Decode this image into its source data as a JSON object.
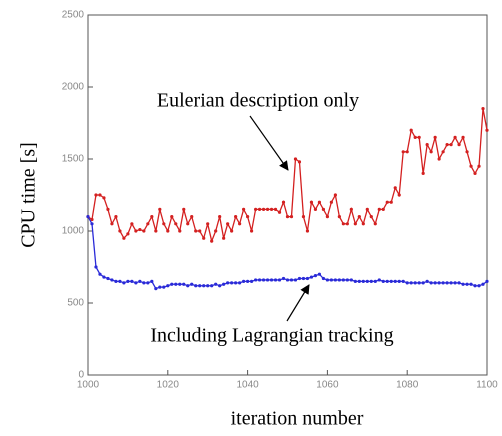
{
  "chart_data": {
    "type": "line",
    "xlabel": "iteration number",
    "ylabel": "CPU time   [s]",
    "annotations": [
      "Eulerian description only",
      "Including Lagrangian tracking"
    ],
    "xlim": [
      1000,
      1100
    ],
    "xticks": [
      1000,
      1020,
      1040,
      1060,
      1080,
      1100
    ],
    "ylim": [
      0,
      2500
    ],
    "yticks": [
      0,
      500,
      1000,
      1500,
      2000,
      2500
    ],
    "x": [
      1000,
      1001,
      1002,
      1003,
      1004,
      1005,
      1006,
      1007,
      1008,
      1009,
      1010,
      1011,
      1012,
      1013,
      1014,
      1015,
      1016,
      1017,
      1018,
      1019,
      1020,
      1021,
      1022,
      1023,
      1024,
      1025,
      1026,
      1027,
      1028,
      1029,
      1030,
      1031,
      1032,
      1033,
      1034,
      1035,
      1036,
      1037,
      1038,
      1039,
      1040,
      1041,
      1042,
      1043,
      1044,
      1045,
      1046,
      1047,
      1048,
      1049,
      1050,
      1051,
      1052,
      1053,
      1054,
      1055,
      1056,
      1057,
      1058,
      1059,
      1060,
      1061,
      1062,
      1063,
      1064,
      1065,
      1066,
      1067,
      1068,
      1069,
      1070,
      1071,
      1072,
      1073,
      1074,
      1075,
      1076,
      1077,
      1078,
      1079,
      1080,
      1081,
      1082,
      1083,
      1084,
      1085,
      1086,
      1087,
      1088,
      1089,
      1090,
      1091,
      1092,
      1093,
      1094,
      1095,
      1096,
      1097,
      1098,
      1099,
      1100
    ],
    "series": [
      {
        "color": "#d42020",
        "values": [
          1100,
          1080,
          1250,
          1250,
          1230,
          1150,
          1050,
          1100,
          1000,
          950,
          980,
          1050,
          1000,
          1010,
          1000,
          1050,
          1100,
          1000,
          1150,
          1050,
          1000,
          1100,
          1050,
          1000,
          1150,
          1050,
          1100,
          1000,
          1000,
          950,
          1050,
          930,
          1000,
          1100,
          950,
          1050,
          1000,
          1100,
          1050,
          1150,
          1100,
          1000,
          1150,
          1150,
          1150,
          1150,
          1150,
          1150,
          1130,
          1200,
          1100,
          1100,
          1500,
          1480,
          1100,
          1000,
          1200,
          1150,
          1200,
          1150,
          1100,
          1200,
          1250,
          1100,
          1050,
          1050,
          1150,
          1050,
          1100,
          1050,
          1150,
          1100,
          1050,
          1150,
          1150,
          1200,
          1200,
          1300,
          1250,
          1550,
          1550,
          1700,
          1650,
          1650,
          1400,
          1600,
          1550,
          1650,
          1500,
          1550,
          1600,
          1600,
          1650,
          1600,
          1650,
          1550,
          1450,
          1400,
          1450,
          1850,
          1700
        ]
      },
      {
        "color": "#2a2ad8",
        "values": [
          1100,
          1050,
          750,
          700,
          680,
          670,
          660,
          650,
          650,
          640,
          650,
          650,
          640,
          650,
          640,
          640,
          650,
          600,
          610,
          610,
          620,
          630,
          630,
          630,
          630,
          620,
          630,
          620,
          620,
          620,
          620,
          620,
          630,
          620,
          630,
          640,
          640,
          640,
          640,
          650,
          650,
          650,
          660,
          660,
          660,
          660,
          660,
          660,
          660,
          670,
          660,
          660,
          660,
          670,
          670,
          670,
          680,
          690,
          700,
          670,
          660,
          660,
          660,
          660,
          660,
          660,
          660,
          650,
          650,
          650,
          650,
          650,
          650,
          660,
          650,
          650,
          650,
          650,
          650,
          650,
          640,
          640,
          640,
          640,
          640,
          650,
          640,
          640,
          640,
          640,
          640,
          640,
          640,
          640,
          630,
          630,
          630,
          620,
          620,
          630,
          650
        ]
      }
    ]
  }
}
